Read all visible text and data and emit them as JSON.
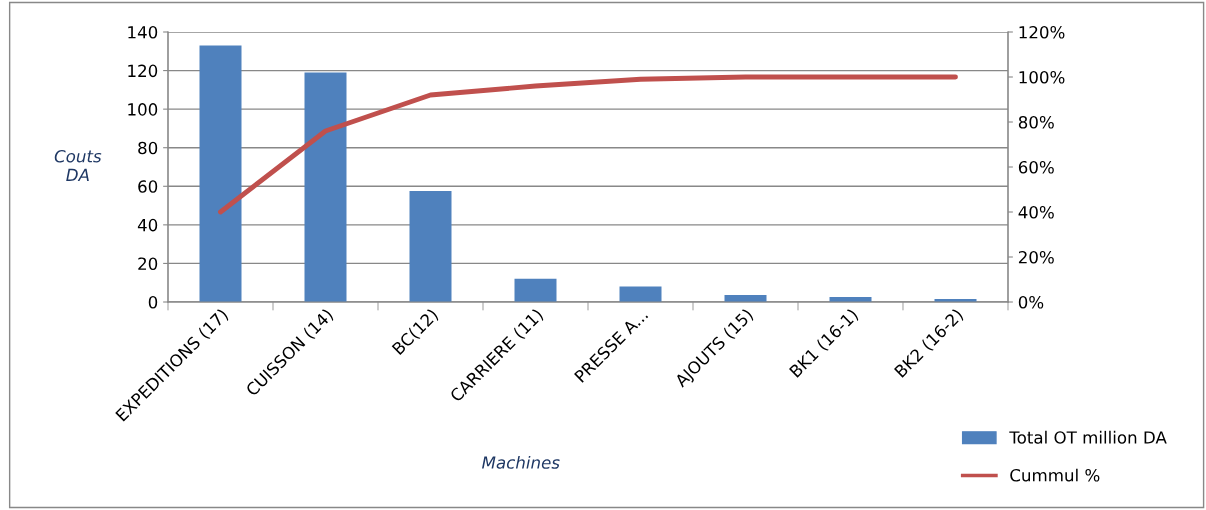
{
  "chart_data": {
    "type": "bar",
    "xlabel": "Machines",
    "ylabel": "Couts\nDA",
    "categories": [
      "EXPEDITIONS (17)",
      "CUISSON (14)",
      "BC(12)",
      "CARRIERE (11)",
      "PRESSE A...",
      "AJOUTS (15)",
      "BK1 (16-1)",
      "BK2 (16-2)"
    ],
    "series": [
      {
        "name": "Total OT million DA",
        "color": "#4f81bd",
        "values": [
          133,
          119,
          57.5,
          12,
          8,
          3.6,
          2.6,
          1.5
        ]
      },
      {
        "name": "Cummul %",
        "type": "line",
        "axis": "y2",
        "color": "#c0504d",
        "values": [
          40,
          76,
          92,
          96,
          99,
          100,
          100,
          100
        ]
      }
    ],
    "ylim": [
      0,
      140
    ],
    "yticks": [
      0,
      20,
      40,
      60,
      80,
      100,
      120,
      140
    ],
    "y2lim": [
      0,
      120
    ],
    "y2ticks": [
      {
        "value": 0,
        "label": "0%"
      },
      {
        "value": 20,
        "label": "20%"
      },
      {
        "value": 40,
        "label": "40%"
      },
      {
        "value": 60,
        "label": "60%"
      },
      {
        "value": 80,
        "label": "80%"
      },
      {
        "value": 100,
        "label": "100%"
      },
      {
        "value": 120,
        "label": "120%"
      }
    ],
    "grid": "y",
    "legend": "bottom right",
    "marker": "none"
  }
}
